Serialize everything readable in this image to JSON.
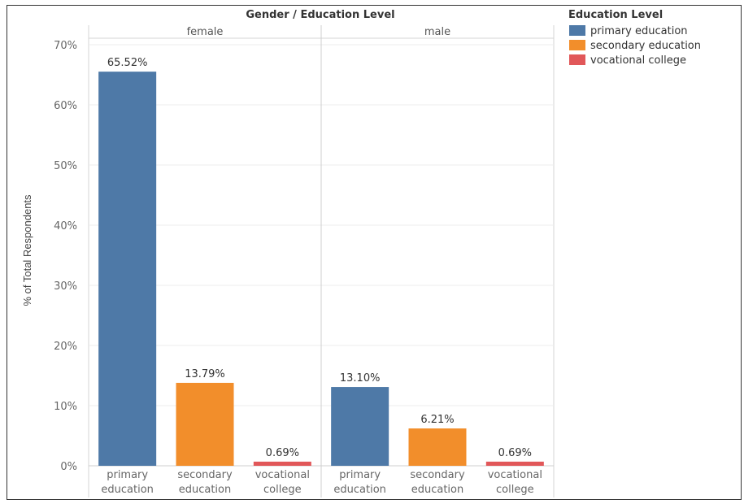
{
  "chart_data": {
    "type": "bar",
    "title": "Gender / Education Level",
    "ylabel": "% of Total Respondents",
    "ylim": [
      0,
      70
    ],
    "yticks": [
      "0%",
      "10%",
      "20%",
      "30%",
      "40%",
      "50%",
      "60%",
      "70%"
    ],
    "grid": true,
    "panels": [
      {
        "name": "female",
        "bars": [
          {
            "category": [
              "primary",
              "education"
            ],
            "series": "primary education",
            "value": 65.52,
            "label": "65.52%"
          },
          {
            "category": [
              "secondary",
              "education"
            ],
            "series": "secondary education",
            "value": 13.79,
            "label": "13.79%"
          },
          {
            "category": [
              "vocational",
              "college"
            ],
            "series": "vocational college",
            "value": 0.69,
            "label": "0.69%"
          }
        ]
      },
      {
        "name": "male",
        "bars": [
          {
            "category": [
              "primary",
              "education"
            ],
            "series": "primary education",
            "value": 13.1,
            "label": "13.10%"
          },
          {
            "category": [
              "secondary",
              "education"
            ],
            "series": "secondary education",
            "value": 6.21,
            "label": "6.21%"
          },
          {
            "category": [
              "vocational",
              "college"
            ],
            "series": "vocational college",
            "value": 0.69,
            "label": "0.69%"
          }
        ]
      }
    ],
    "legend": {
      "title": "Education Level",
      "placement": "right",
      "entries": [
        {
          "name": "primary education",
          "color": "#4e79a7"
        },
        {
          "name": "secondary education",
          "color": "#f28e2b"
        },
        {
          "name": "vocational college",
          "color": "#e15759"
        }
      ]
    }
  }
}
